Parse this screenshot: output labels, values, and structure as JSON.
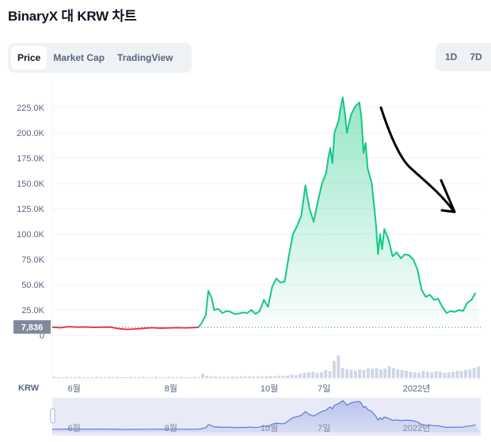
{
  "title": "BinaryX 대 KRW 차트",
  "tabs": [
    {
      "label": "Price",
      "active": true
    },
    {
      "label": "Market Cap",
      "active": false
    },
    {
      "label": "TradingView",
      "active": false
    }
  ],
  "range_tabs": [
    "1D",
    "7D"
  ],
  "currency_label": "KRW",
  "current_price_label": "7,836",
  "colors": {
    "up": "#16c784",
    "down": "#ea3943",
    "fill_top": "#16c784",
    "navigator": "#6179d6"
  },
  "chart_data": {
    "type": "area",
    "title": "",
    "xlabel": "",
    "ylabel": "",
    "ylim": [
      0,
      240000
    ],
    "yticks": [
      0,
      25000,
      50000,
      75000,
      100000,
      125000,
      150000,
      175000,
      200000,
      225000
    ],
    "ytick_labels": [
      "0",
      "25.0K",
      "50.0K",
      "75.0K",
      "100.0K",
      "125.0K",
      "150.0K",
      "175.0K",
      "200.0K",
      "225.0K"
    ],
    "xlim": [
      0,
      100
    ],
    "xticks": [
      {
        "x": 5.3,
        "label": "6월"
      },
      {
        "x": 28.6,
        "label": "8월"
      },
      {
        "x": 52.3,
        "label": "10월"
      },
      {
        "x": 65.5,
        "label": "7일"
      },
      {
        "x": 87.8,
        "label": "2022년"
      }
    ],
    "baseline_value": 7836,
    "split_x": 35.2,
    "series": [
      {
        "values": [
          [
            0,
            8000
          ],
          [
            2,
            7500
          ],
          [
            4,
            8500
          ],
          [
            6,
            8000
          ],
          [
            8,
            8200
          ],
          [
            10,
            7800
          ],
          [
            12,
            8000
          ],
          [
            14,
            8100
          ],
          [
            16,
            6500
          ],
          [
            18,
            5800
          ],
          [
            20,
            6200
          ],
          [
            22,
            6800
          ],
          [
            24,
            7500
          ],
          [
            26,
            7000
          ],
          [
            28,
            7200
          ],
          [
            30,
            7500
          ],
          [
            32,
            7300
          ],
          [
            34,
            7600
          ],
          [
            35.2,
            7800
          ],
          [
            36,
            12000
          ],
          [
            37,
            20000
          ],
          [
            37.6,
            44000
          ],
          [
            38.4,
            37000
          ],
          [
            39,
            25000
          ],
          [
            40,
            26000
          ],
          [
            41,
            22000
          ],
          [
            42,
            24000
          ],
          [
            43,
            23000
          ],
          [
            44,
            21000
          ],
          [
            45,
            21500
          ],
          [
            46,
            22500
          ],
          [
            47,
            22000
          ],
          [
            48,
            25000
          ],
          [
            49,
            21000
          ],
          [
            50,
            24000
          ],
          [
            51,
            35000
          ],
          [
            52,
            28000
          ],
          [
            53,
            48000
          ],
          [
            54,
            56000
          ],
          [
            55,
            52000
          ],
          [
            56,
            53000
          ],
          [
            57,
            78000
          ],
          [
            58,
            100000
          ],
          [
            59,
            108000
          ],
          [
            60,
            118000
          ],
          [
            61,
            148000
          ],
          [
            62,
            125000
          ],
          [
            63,
            112000
          ],
          [
            64,
            132000
          ],
          [
            65,
            150000
          ],
          [
            66,
            160000
          ],
          [
            66.5,
            175000
          ],
          [
            67,
            185000
          ],
          [
            67.5,
            170000
          ],
          [
            68,
            200000
          ],
          [
            69,
            212000
          ],
          [
            69.5,
            225000
          ],
          [
            70,
            235000
          ],
          [
            70.5,
            220000
          ],
          [
            71,
            200000
          ],
          [
            72,
            218000
          ],
          [
            73,
            226000
          ],
          [
            74,
            230000
          ],
          [
            74.5,
            215000
          ],
          [
            75,
            180000
          ],
          [
            75.5,
            190000
          ],
          [
            76,
            165000
          ],
          [
            77,
            150000
          ],
          [
            78,
            110000
          ],
          [
            78.5,
            80000
          ],
          [
            79,
            100000
          ],
          [
            79.5,
            85000
          ],
          [
            80,
            105000
          ],
          [
            81,
            95000
          ],
          [
            82,
            78000
          ],
          [
            83,
            82000
          ],
          [
            84,
            76000
          ],
          [
            85,
            80000
          ],
          [
            86,
            79000
          ],
          [
            87,
            75000
          ],
          [
            88,
            65000
          ],
          [
            89,
            45000
          ],
          [
            90,
            38000
          ],
          [
            91,
            40000
          ],
          [
            92,
            35000
          ],
          [
            93,
            36000
          ],
          [
            94,
            28000
          ],
          [
            95,
            22000
          ],
          [
            96,
            24000
          ],
          [
            97,
            23000
          ],
          [
            98,
            25000
          ],
          [
            99,
            24000
          ],
          [
            100,
            32000
          ],
          [
            101,
            35000
          ],
          [
            102,
            42000
          ]
        ]
      }
    ],
    "volume": [
      0.04,
      0.03,
      0.03,
      0.04,
      0.03,
      0.03,
      0.04,
      0.03,
      0.03,
      0.03,
      0.04,
      0.03,
      0.03,
      0.04,
      0.03,
      0.04,
      0.03,
      0.03,
      0.04,
      0.03,
      0.03,
      0.04,
      0.03,
      0.03,
      0.04,
      0.03,
      0.03,
      0.04,
      0.03,
      0.03,
      0.04,
      0.03,
      0.03,
      0.04,
      0.03,
      0.15,
      0.08,
      0.05,
      0.05,
      0.04,
      0.05,
      0.04,
      0.05,
      0.04,
      0.05,
      0.06,
      0.05,
      0.05,
      0.06,
      0.05,
      0.06,
      0.07,
      0.06,
      0.08,
      0.07,
      0.08,
      0.12,
      0.1,
      0.14,
      0.18,
      0.2,
      0.22,
      0.18,
      0.2,
      0.28,
      0.24,
      0.6,
      0.8,
      0.35,
      0.3,
      0.28,
      0.26,
      0.3,
      0.28,
      0.34,
      0.32,
      0.35,
      0.3,
      0.33,
      0.42,
      0.35,
      0.3,
      0.28,
      0.25,
      0.22,
      0.2,
      0.18,
      0.25,
      0.22,
      0.2,
      0.24,
      0.22,
      0.18,
      0.2,
      0.22,
      0.25,
      0.24,
      0.28,
      0.3,
      0.35,
      0.4
    ],
    "navigator_labels": [
      {
        "x": 5.3,
        "label": "6월"
      },
      {
        "x": 28.6,
        "label": "8월"
      },
      {
        "x": 52.3,
        "label": "10월"
      },
      {
        "x": 65.5,
        "label": "7일"
      },
      {
        "x": 87.8,
        "label": "2022년"
      }
    ]
  }
}
